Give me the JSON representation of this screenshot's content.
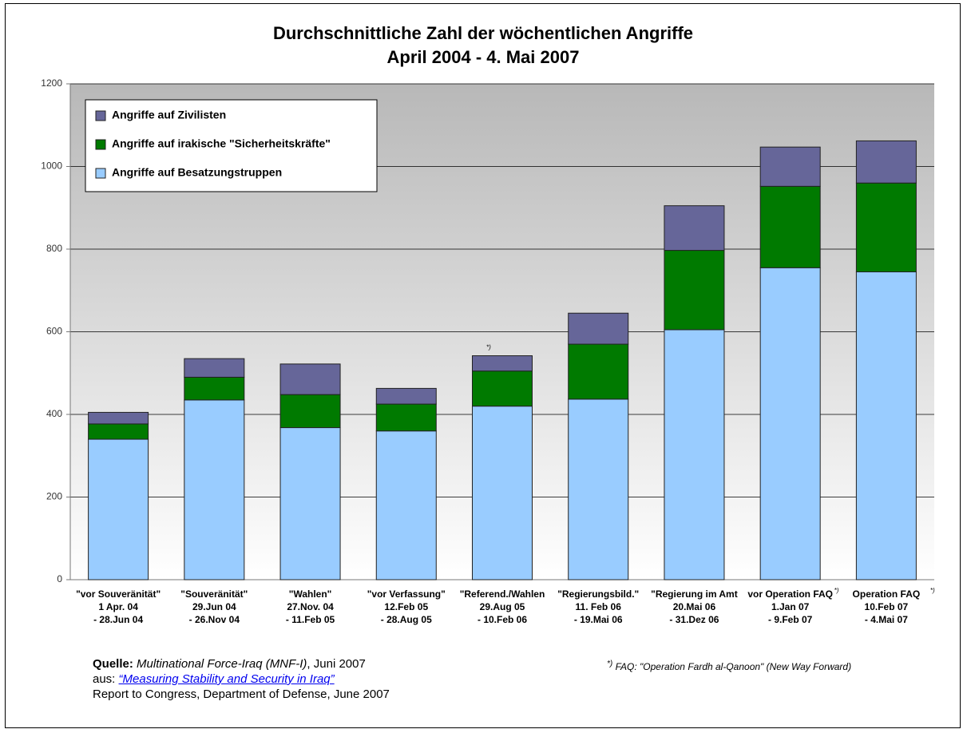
{
  "chart_data": {
    "type": "stacked_bar",
    "title": [
      "Durchschnittliche Zahl der wöchentlichen Angriffe",
      "April 2004 - 4. Mai 2007"
    ],
    "categories": [
      [
        "\"vor Souveränität\"",
        "1 Apr. 04",
        "- 28.Jun 04"
      ],
      [
        "\"Souveränität\"",
        "29.Jun 04",
        "- 26.Nov 04"
      ],
      [
        "\"Wahlen\"",
        "27.Nov. 04",
        "- 11.Feb 05"
      ],
      [
        "\"vor Verfassung\"",
        "12.Feb 05",
        "- 28.Aug 05"
      ],
      [
        "\"Referend./Wahlen",
        "29.Aug 05",
        "- 10.Feb 06"
      ],
      [
        "\"Regierungsbild.\"",
        "11. Feb 06",
        "- 19.Mai 06"
      ],
      [
        "\"Regierung im Amt",
        "20.Mai 06",
        "- 31.Dez 06"
      ],
      [
        "vor Operation FAQ",
        "1.Jan 07",
        "- 9.Feb 07"
      ],
      [
        "Operation FAQ",
        "10.Feb 07",
        "- 4.Mai 07"
      ]
    ],
    "series": [
      {
        "name": "Angriffe auf Besatzungstruppen",
        "color": "#99ccff",
        "values": [
          340,
          435,
          368,
          360,
          420,
          437,
          605,
          755,
          745
        ]
      },
      {
        "name": "Angriffe auf irakische \"Sicherheitskräfte\"",
        "color": "#007a00",
        "values": [
          37,
          55,
          80,
          65,
          85,
          133,
          192,
          197,
          215
        ]
      },
      {
        "name": "Angriffe auf Zivilisten",
        "color": "#666699",
        "values": [
          28,
          45,
          74,
          38,
          37,
          75,
          108,
          95,
          102
        ]
      }
    ],
    "ylim": [
      0,
      1200
    ],
    "yticks": [
      0,
      200,
      400,
      600,
      800,
      1000,
      1200
    ],
    "grid": true,
    "legend": "upper left",
    "footnote": {
      "marker": "*)",
      "text": "FAQ: \"Operation Fardh al-Qanoon\" (New Way Forward)"
    }
  },
  "source": {
    "label": "Quelle:",
    "org": "Multinational Force-Iraq (MNF-I)",
    "date": ", Juni 2007",
    "from": "aus: ",
    "link": "“Measuring Stability and Security in Iraq”",
    "report": "Report to Congress, Department of Defense, June 2007"
  }
}
